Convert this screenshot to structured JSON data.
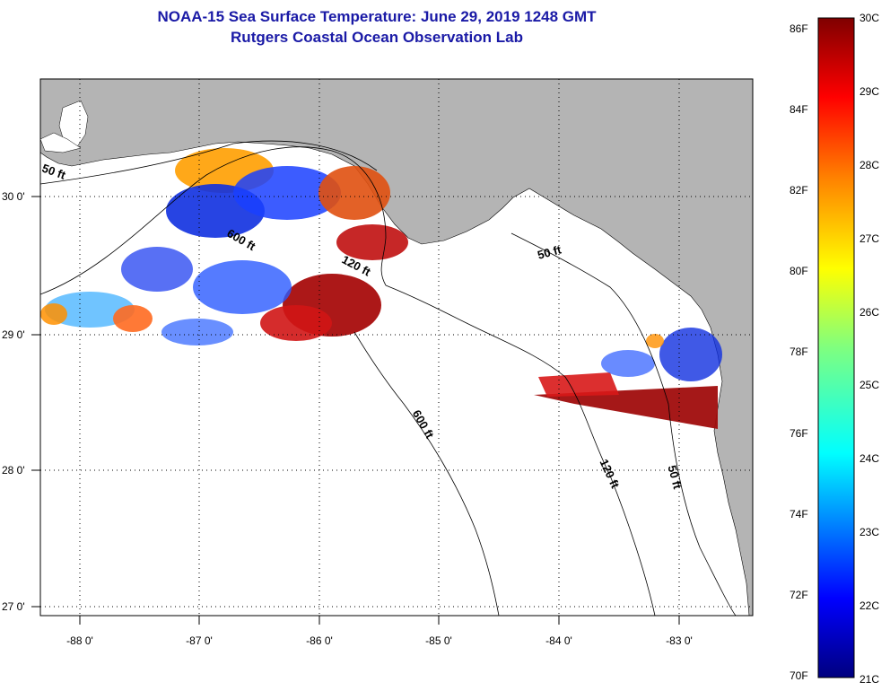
{
  "title_line1": "NOAA-15 Sea Surface Temperature:  June 29, 2019 1248 GMT",
  "title_line2": "Rutgers Coastal Ocean Observation Lab",
  "map": {
    "lon_ticks": [
      "-88 0'",
      "-87 0'",
      "-86 0'",
      "-85 0'",
      "-84 0'",
      "-83 0'"
    ],
    "lat_ticks": [
      "30 0'",
      "29 0'",
      "28 0'",
      "27 0'"
    ],
    "contour_labels": [
      "50 ft",
      "600 ft",
      "120 ft",
      "50 ft",
      "600 ft",
      "120 ft",
      "50 ft"
    ],
    "colors": {
      "land": "#b4b4b4",
      "water": "#ffffff",
      "frame": "#000000"
    }
  },
  "colorbar": {
    "fahrenheit_ticks": [
      "86F",
      "84F",
      "82F",
      "80F",
      "78F",
      "76F",
      "74F",
      "72F",
      "70F"
    ],
    "celsius_ticks": [
      "30C",
      "29C",
      "28C",
      "27C",
      "26C",
      "25C",
      "24C",
      "23C",
      "22C",
      "21C"
    ],
    "range_c": [
      21,
      30
    ],
    "colormap": [
      "#00007f",
      "#0000ff",
      "#007fff",
      "#00ffff",
      "#7fff7f",
      "#ffff00",
      "#ff7f00",
      "#ff0000",
      "#7f0000"
    ]
  }
}
